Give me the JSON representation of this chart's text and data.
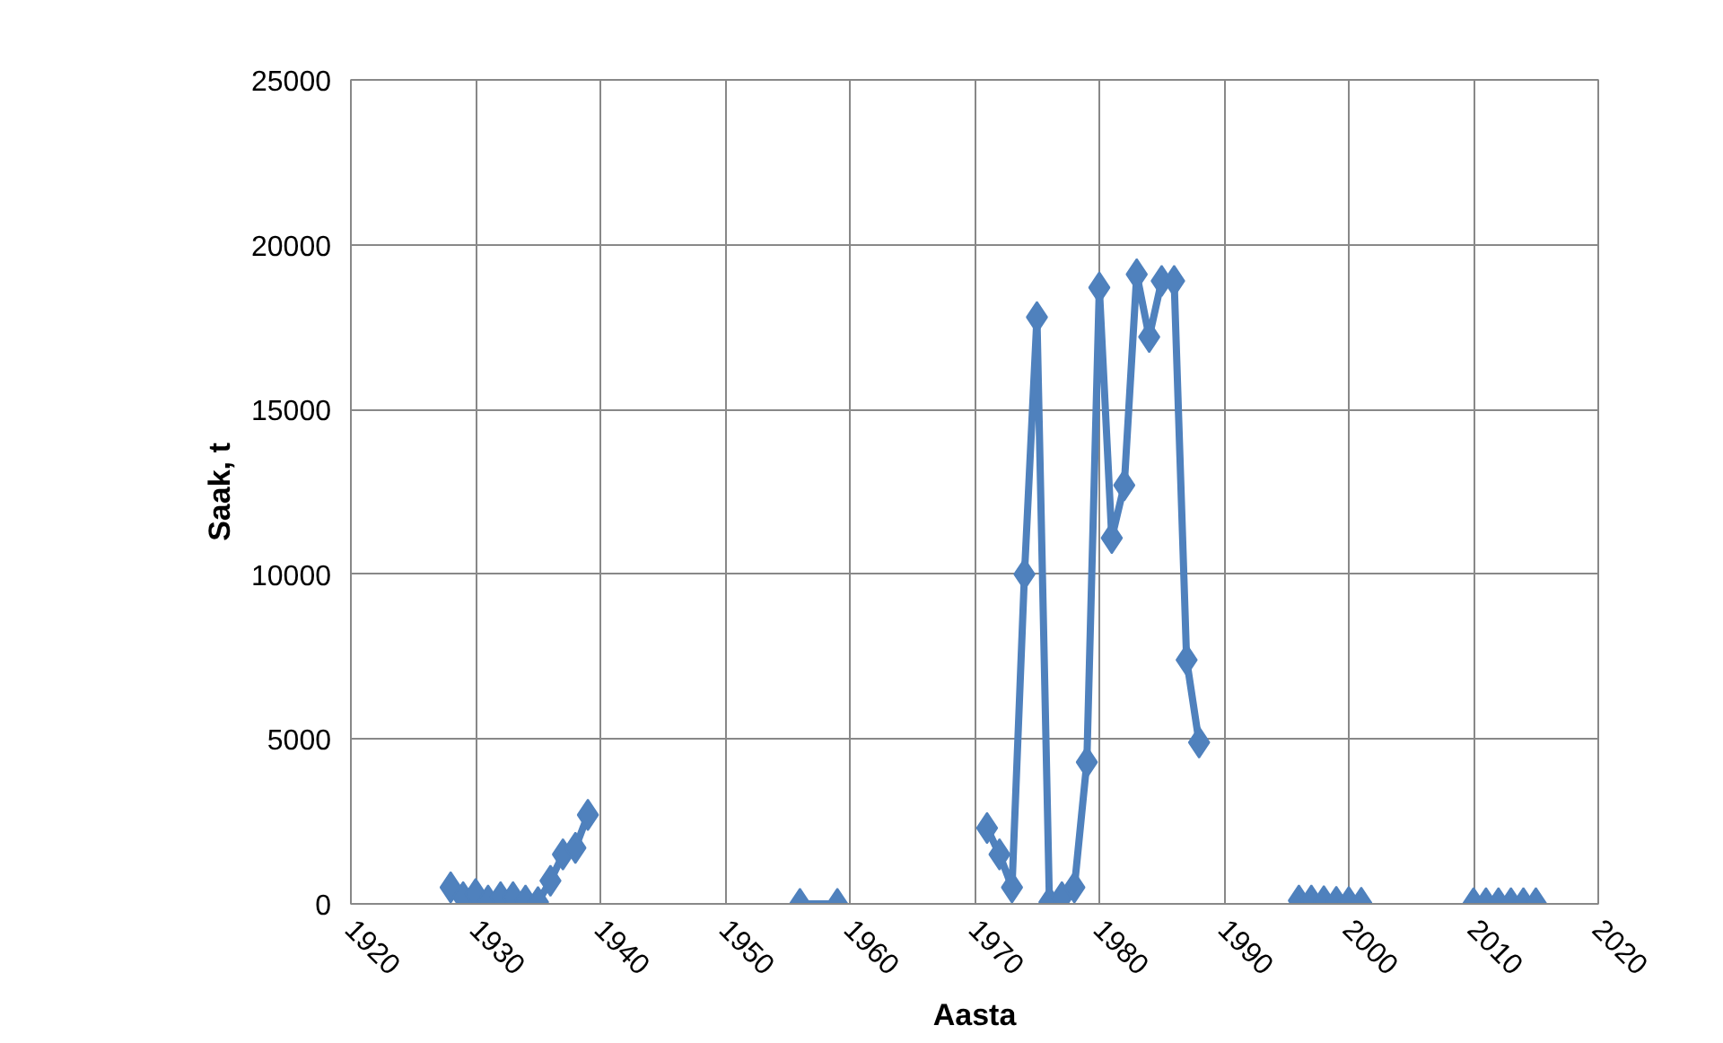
{
  "chart_data": {
    "type": "line",
    "xlabel": "Aasta",
    "ylabel": "Saak, t",
    "marker": "diamond",
    "grid": true,
    "xlim": [
      1920,
      2020
    ],
    "xticks": [
      1920,
      1930,
      1940,
      1950,
      1960,
      1970,
      1980,
      1990,
      2000,
      2010,
      2020
    ],
    "ylim": [
      0,
      25000
    ],
    "yticks": [
      0,
      5000,
      10000,
      15000,
      20000,
      25000
    ],
    "series": [
      {
        "color": "#4f81bd",
        "x": [
          1928,
          1929,
          1930,
          1931,
          1932,
          1933,
          1934,
          1935,
          1936,
          1937,
          1938,
          1939
        ],
        "values": [
          500,
          200,
          300,
          100,
          200,
          200,
          100,
          50,
          700,
          1500,
          1700,
          2700
        ]
      },
      {
        "color": "#4f81bd",
        "x": [
          1956,
          1959
        ],
        "values": [
          0,
          0
        ]
      },
      {
        "color": "#4f81bd",
        "x": [
          1971,
          1972,
          1973,
          1974,
          1975,
          1976,
          1977,
          1978,
          1979,
          1980,
          1981,
          1982,
          1983,
          1984,
          1985,
          1986,
          1987,
          1988
        ],
        "values": [
          2300,
          1500,
          500,
          10000,
          17800,
          50,
          200,
          500,
          4300,
          18700,
          11100,
          12700,
          19100,
          17200,
          18900,
          18900,
          7400,
          4900
        ]
      },
      {
        "type": "scatter",
        "color": "#4f81bd",
        "x": [
          1996,
          1997,
          1998,
          1999,
          2000,
          2001
        ],
        "values": [
          100,
          100,
          80,
          60,
          50,
          30
        ]
      },
      {
        "type": "scatter",
        "color": "#4f81bd",
        "x": [
          2010,
          2011,
          2012,
          2013,
          2014,
          2015
        ],
        "values": [
          20,
          20,
          20,
          20,
          20,
          20
        ]
      }
    ]
  }
}
